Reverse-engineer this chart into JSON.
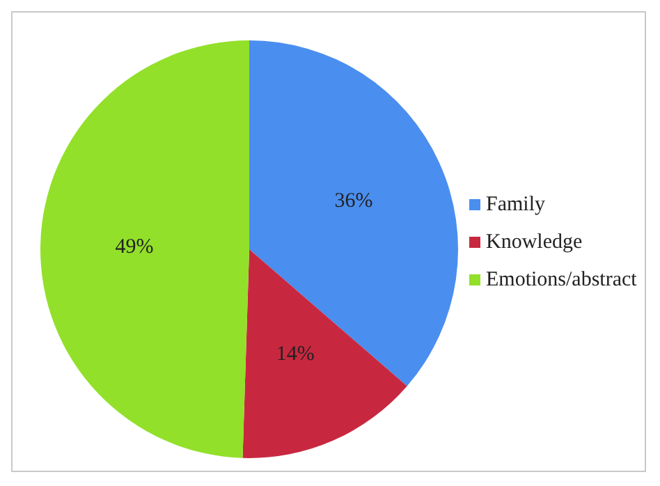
{
  "chart_data": {
    "type": "pie",
    "categories": [
      "Family",
      "Knowledge",
      "Emotions/abstract"
    ],
    "values": [
      36,
      14,
      49
    ],
    "colors": [
      "#4a8ef0",
      "#c8283f",
      "#92e02a"
    ],
    "value_labels": [
      "36%",
      "14%",
      "49%"
    ],
    "legend": "right"
  }
}
